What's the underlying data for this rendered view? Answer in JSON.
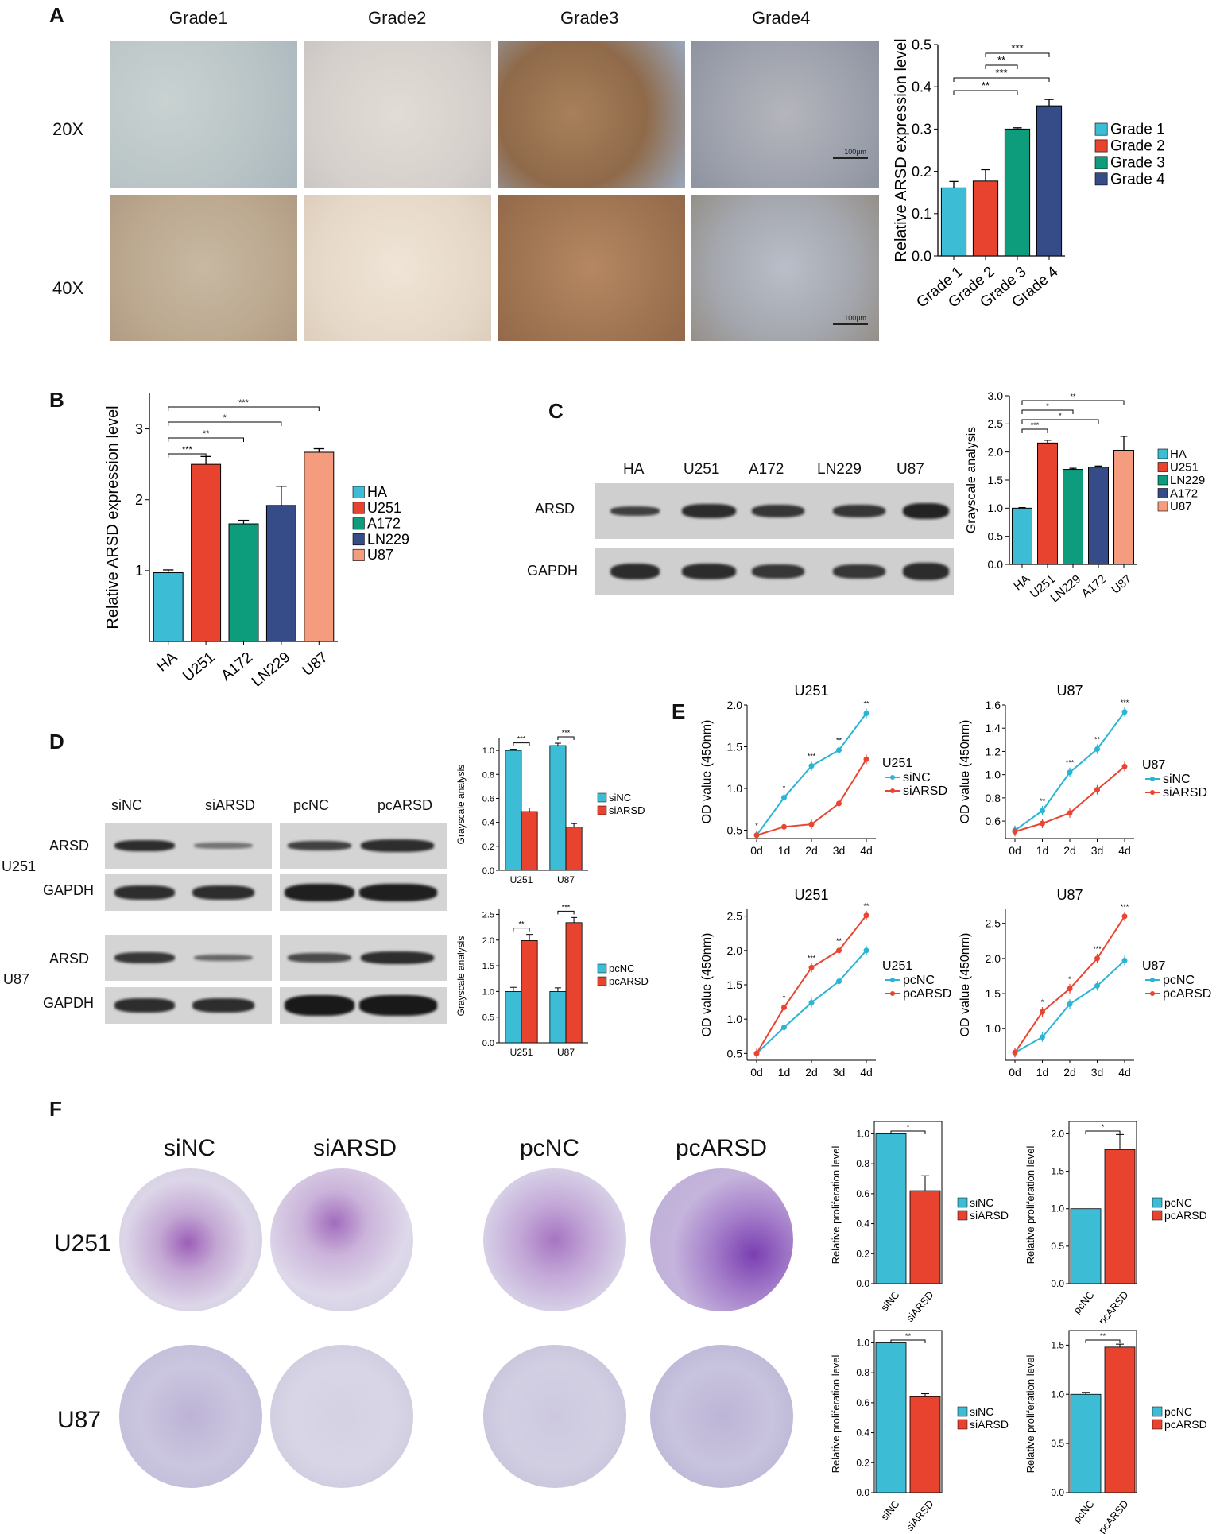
{
  "panels": {
    "A": {
      "letter": "A",
      "col_labels": [
        "Grade1",
        "Grade2",
        "Grade3",
        "Grade4"
      ],
      "row_labels": [
        "20X",
        "40X"
      ],
      "scalebar_label": "100μm",
      "chart_data": {
        "type": "bar",
        "categories": [
          "Grade 1",
          "Grade 2",
          "Grade 3",
          "Grade 4"
        ],
        "values": [
          0.161,
          0.177,
          0.3,
          0.355
        ],
        "errors": [
          0.015,
          0.027,
          0.003,
          0.015
        ],
        "ylabel": "Relative ARSD expression level",
        "ylim": [
          0,
          0.5
        ],
        "yticks": [
          "0.0",
          "0.1",
          "0.2",
          "0.3",
          "0.4",
          "0.5"
        ],
        "legend": [
          "Grade 1",
          "Grade 2",
          "Grade 3",
          "Grade 4"
        ],
        "significance": [
          {
            "from": 2,
            "to": 3,
            "label": "***"
          },
          {
            "from": 2,
            "to": 2,
            "label": "**"
          },
          {
            "from": 1,
            "to": 3,
            "label": "***"
          },
          {
            "from": 0,
            "to": 2,
            "label": "**"
          }
        ]
      }
    },
    "B": {
      "letter": "B",
      "chart_data": {
        "type": "bar",
        "categories": [
          "HA",
          "U251",
          "A172",
          "LN229",
          "U87"
        ],
        "values": [
          0.97,
          2.5,
          1.66,
          1.92,
          2.67
        ],
        "errors": [
          0.04,
          0.11,
          0.05,
          0.27,
          0.05
        ],
        "ylabel": "Relative ARSD expression level",
        "ylim": [
          0,
          3.5
        ],
        "yticks": [
          "1",
          "2",
          "3"
        ],
        "legend": [
          "HA",
          "U251",
          "A172",
          "LN229",
          "U87"
        ],
        "significance": [
          {
            "label": "***"
          },
          {
            "label": "**"
          },
          {
            "label": "*"
          },
          {
            "label": "***"
          }
        ]
      }
    },
    "C": {
      "letter": "C",
      "lane_labels": [
        "HA",
        "U251",
        "A172",
        "LN229",
        "U87"
      ],
      "row_labels": [
        "ARSD",
        "GAPDH"
      ],
      "chart_data": {
        "type": "bar",
        "categories": [
          "HA",
          "U251",
          "LN229",
          "A172",
          "U87"
        ],
        "values": [
          1.0,
          2.16,
          1.69,
          1.73,
          2.03
        ],
        "errors": [
          0.01,
          0.05,
          0.02,
          0.02,
          0.25
        ],
        "ylabel": "Grayscale analysis",
        "ylim": [
          0,
          3.0
        ],
        "yticks": [
          "0.0",
          "0.5",
          "1.0",
          "1.5",
          "2.0",
          "2.5",
          "3.0"
        ],
        "legend": [
          "HA",
          "U251",
          "LN229",
          "A172",
          "U87"
        ],
        "significance": [
          {
            "label": "***"
          },
          {
            "label": "*"
          },
          {
            "label": "*"
          },
          {
            "label": "**"
          }
        ]
      }
    },
    "D": {
      "letter": "D",
      "lane_labels": [
        "siNC",
        "siARSD",
        "pcNC",
        "pcARSD"
      ],
      "cell_labels": [
        "U251",
        "U87"
      ],
      "row_labels": [
        "ARSD",
        "GAPDH"
      ],
      "charts": [
        {
          "type": "bar",
          "categories": [
            "U251",
            "U87"
          ],
          "series": [
            {
              "name": "siNC",
              "values": [
                1.0,
                1.04
              ],
              "errors": [
                0.01,
                0.02
              ]
            },
            {
              "name": "siARSD",
              "values": [
                0.49,
                0.36
              ],
              "errors": [
                0.03,
                0.03
              ]
            }
          ],
          "ylabel": "Grayscale analysis",
          "ylim": [
            0,
            1.1
          ],
          "yticks": [
            "0.0",
            "0.2",
            "0.4",
            "0.6",
            "0.8",
            "1.0"
          ],
          "significance": [
            "***",
            "***"
          ]
        },
        {
          "type": "bar",
          "categories": [
            "U251",
            "U87"
          ],
          "series": [
            {
              "name": "pcNC",
              "values": [
                1.0,
                1.0
              ],
              "errors": [
                0.08,
                0.07
              ]
            },
            {
              "name": "pcARSD",
              "values": [
                1.99,
                2.34
              ],
              "errors": [
                0.12,
                0.1
              ]
            }
          ],
          "ylabel": "Grayscale analysis",
          "ylim": [
            0,
            2.6
          ],
          "yticks": [
            "0.0",
            "0.5",
            "1.0",
            "1.5",
            "2.0",
            "2.5"
          ],
          "significance": [
            "**",
            "***"
          ]
        }
      ]
    },
    "E": {
      "letter": "E",
      "charts": [
        {
          "type": "line",
          "title": "U251",
          "legend_title": "U251",
          "x": [
            "0d",
            "1d",
            "2d",
            "3d",
            "4d"
          ],
          "series": [
            {
              "name": "siNC",
              "values": [
                0.44,
                0.89,
                1.27,
                1.46,
                1.9
              ]
            },
            {
              "name": "siARSD",
              "values": [
                0.44,
                0.54,
                0.57,
                0.82,
                1.35
              ]
            }
          ],
          "ylabel": "OD value (450nm)",
          "ylim": [
            0.4,
            2.0
          ],
          "yticks": [
            "0.5",
            "1.0",
            "1.5",
            "2.0"
          ],
          "significance": [
            "*",
            "*",
            "***",
            "**",
            "**"
          ]
        },
        {
          "type": "line",
          "title": "U87",
          "legend_title": "U87",
          "x": [
            "0d",
            "1d",
            "2d",
            "3d",
            "4d"
          ],
          "series": [
            {
              "name": "siNC",
              "values": [
                0.52,
                0.69,
                1.02,
                1.22,
                1.54
              ]
            },
            {
              "name": "siARSD",
              "values": [
                0.51,
                0.58,
                0.67,
                0.87,
                1.07
              ]
            }
          ],
          "ylabel": "OD value (450nm)",
          "ylim": [
            0.45,
            1.6
          ],
          "yticks": [
            "0.6",
            "0.8",
            "1.0",
            "1.2",
            "1.4",
            "1.6"
          ],
          "significance": [
            "",
            "**",
            "***",
            "**",
            "***"
          ]
        },
        {
          "type": "line",
          "title": "U251",
          "legend_title": "U251",
          "x": [
            "0d",
            "1d",
            "2d",
            "3d",
            "4d"
          ],
          "series": [
            {
              "name": "pcNC",
              "values": [
                0.5,
                0.88,
                1.24,
                1.55,
                2.0
              ]
            },
            {
              "name": "pcARSD",
              "values": [
                0.5,
                1.17,
                1.75,
                2.0,
                2.51
              ]
            }
          ],
          "ylabel": "OD value (450nm)",
          "ylim": [
            0.4,
            2.6
          ],
          "yticks": [
            "0.5",
            "1.0",
            "1.5",
            "2.0",
            "2.5"
          ],
          "significance": [
            "",
            "*",
            "***",
            "**",
            "**"
          ]
        },
        {
          "type": "line",
          "title": "U87",
          "legend_title": "U87",
          "x": [
            "0d",
            "1d",
            "2d",
            "3d",
            "4d"
          ],
          "series": [
            {
              "name": "pcNC",
              "values": [
                0.66,
                0.88,
                1.35,
                1.61,
                1.97
              ]
            },
            {
              "name": "pcARSD",
              "values": [
                0.66,
                1.24,
                1.57,
                2.0,
                2.6
              ]
            }
          ],
          "ylabel": "OD value (450nm)",
          "ylim": [
            0.55,
            2.7
          ],
          "yticks": [
            "1.0",
            "1.5",
            "2.0",
            "2.5"
          ],
          "significance": [
            "",
            "*",
            "*",
            "***",
            "***"
          ]
        }
      ]
    },
    "F": {
      "letter": "F",
      "col_labels": [
        "siNC",
        "siARSD",
        "pcNC",
        "pcARSD"
      ],
      "row_labels": [
        "U251",
        "U87"
      ],
      "charts": [
        {
          "type": "bar",
          "categories": [
            "siNC",
            "siARSD"
          ],
          "values": [
            1.0,
            0.62
          ],
          "errors": [
            0.0,
            0.1
          ],
          "ylabel": "Relative proliferation level",
          "ylim": [
            0,
            1.05
          ],
          "yticks": [
            "0.0",
            "0.2",
            "0.4",
            "0.6",
            "0.8",
            "1.0"
          ],
          "legend": [
            "siNC",
            "siARSD"
          ],
          "significance": "*"
        },
        {
          "type": "bar",
          "categories": [
            "pcNC",
            "pcARSD"
          ],
          "values": [
            1.0,
            1.79
          ],
          "errors": [
            0.0,
            0.2
          ],
          "ylabel": "Relative proliferation level",
          "ylim": [
            0,
            2.1
          ],
          "yticks": [
            "0.0",
            "0.5",
            "1.0",
            "1.5",
            "2.0"
          ],
          "legend": [
            "pcNC",
            "pcARSD"
          ],
          "significance": "*"
        },
        {
          "type": "bar",
          "categories": [
            "siNC",
            "siARSD"
          ],
          "values": [
            1.0,
            0.64
          ],
          "errors": [
            0.0,
            0.02
          ],
          "ylabel": "Relative proliferation level",
          "ylim": [
            0,
            1.05
          ],
          "yticks": [
            "0.0",
            "0.2",
            "0.4",
            "0.6",
            "0.8",
            "1.0"
          ],
          "legend": [
            "siNC",
            "siARSD"
          ],
          "significance": "**"
        },
        {
          "type": "bar",
          "categories": [
            "pcNC",
            "pcARSD"
          ],
          "values": [
            1.0,
            1.48
          ],
          "errors": [
            0.02,
            0.03
          ],
          "ylabel": "Relative proliferation level",
          "ylim": [
            0,
            1.6
          ],
          "yticks": [
            "0.0",
            "0.5",
            "1.0",
            "1.5"
          ],
          "legend": [
            "pcNC",
            "pcARSD"
          ],
          "significance": "**"
        }
      ]
    }
  },
  "colors": {
    "cyan": "#3dbcd6",
    "red": "#e7432f",
    "green": "#0e9d7c",
    "navy": "#354c88",
    "salmon": "#f59c7e",
    "line_cyan": "#2bb5d4",
    "line_red": "#e84533"
  }
}
